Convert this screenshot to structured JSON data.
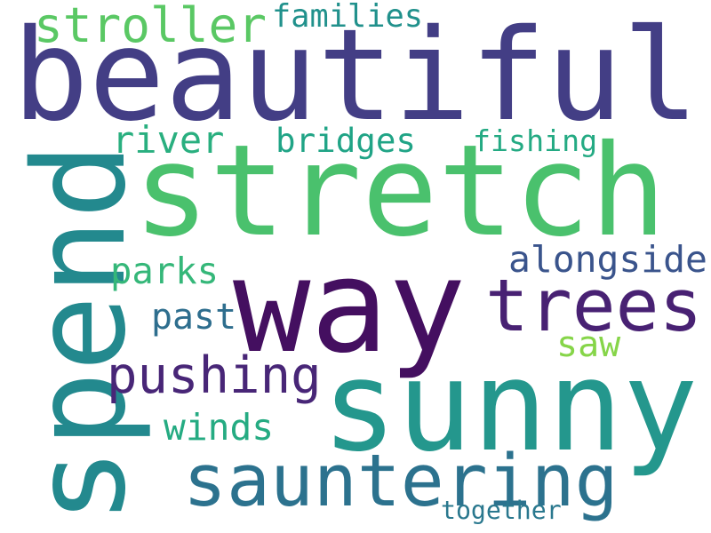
{
  "wordcloud": {
    "words": [
      {
        "text": "beautiful",
        "color": "#433e85"
      },
      {
        "text": "stretch",
        "color": "#4ac16d"
      },
      {
        "text": "way",
        "color": "#440f60"
      },
      {
        "text": "sunny",
        "color": "#24978d"
      },
      {
        "text": "spend",
        "color": "#23898e"
      },
      {
        "text": "trees",
        "color": "#482173"
      },
      {
        "text": "sauntering",
        "color": "#2c728e"
      },
      {
        "text": "pushing",
        "color": "#482677"
      },
      {
        "text": "stroller",
        "color": "#5ac864"
      },
      {
        "text": "families",
        "color": "#21918c"
      },
      {
        "text": "river",
        "color": "#29af7f"
      },
      {
        "text": "bridges",
        "color": "#20a486"
      },
      {
        "text": "fishing",
        "color": "#24aa83"
      },
      {
        "text": "alongside",
        "color": "#3a548c"
      },
      {
        "text": "parks",
        "color": "#35b779"
      },
      {
        "text": "past",
        "color": "#2e6e8e"
      },
      {
        "text": "saw",
        "color": "#86d549"
      },
      {
        "text": "winds",
        "color": "#25ab82"
      },
      {
        "text": "together",
        "color": "#2a788e"
      }
    ]
  }
}
